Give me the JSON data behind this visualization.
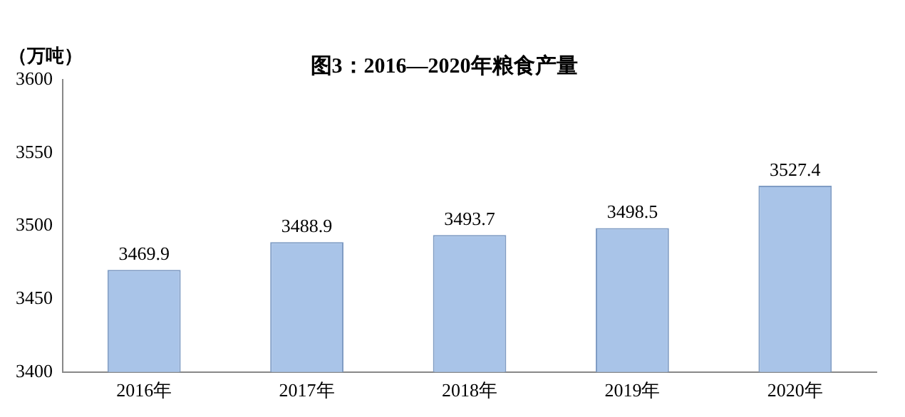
{
  "chart_data": {
    "type": "bar",
    "title": "图3：2016—2020年粮食产量",
    "ylabel": "（万吨）",
    "categories": [
      "2016年",
      "2017年",
      "2018年",
      "2019年",
      "2020年"
    ],
    "values": [
      3469.9,
      3488.9,
      3493.7,
      3498.5,
      3527.4
    ],
    "color": "#a9c4e8",
    "ylim": [
      3400,
      3600
    ],
    "yticks": [
      3400,
      3450,
      3500,
      3550,
      3600
    ],
    "grid": false,
    "legend": false,
    "data_labels": true
  }
}
